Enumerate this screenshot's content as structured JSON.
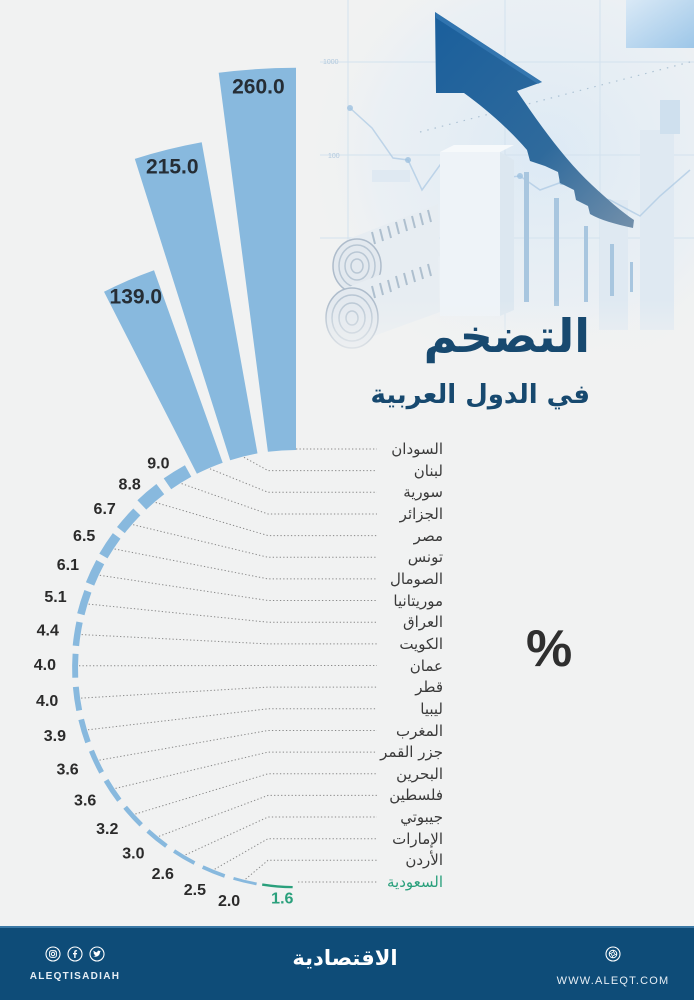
{
  "header": {
    "title": "التضخم",
    "subtitle": "في الدول العربية",
    "unit": "%"
  },
  "illustration": {
    "axis_labels": [
      "1000",
      "100"
    ],
    "icon": "rising-arrow-icon"
  },
  "chart_data": {
    "type": "bar",
    "variant": "radial",
    "title": "التضخم في الدول العربية",
    "xlabel": "",
    "ylabel": "%",
    "categories": [
      "السودان",
      "لبنان",
      "سورية",
      "الجزائر",
      "مصر",
      "تونس",
      "الصومال",
      "موريتانيا",
      "العراق",
      "الكويت",
      "عمان",
      "قطر",
      "ليبيا",
      "المغرب",
      "جزر القمر",
      "البحرين",
      "فلسطين",
      "جيبوتي",
      "الإمارات",
      "الأردن",
      "السعودية"
    ],
    "values": [
      260.0,
      215.0,
      139.0,
      9.0,
      8.8,
      6.7,
      6.5,
      6.1,
      5.1,
      4.4,
      4.0,
      4.0,
      3.9,
      3.6,
      3.6,
      3.2,
      3.0,
      2.6,
      2.5,
      2.0,
      1.6
    ],
    "value_labels": [
      "260.0",
      "215.0",
      "139.0",
      "9.0",
      "8.8",
      "6.7",
      "6.5",
      "6.1",
      "5.1",
      "4.4",
      "4.0",
      "4.0",
      "3.9",
      "3.6",
      "3.6",
      "3.2",
      "3.0",
      "2.6",
      "2.5",
      "2.0",
      "1.6"
    ],
    "highlight": "السعودية",
    "colors": {
      "bar": "#88b9de",
      "highlight": "#2aa07c"
    },
    "grid": false,
    "legend": null,
    "order": "descending"
  },
  "colors": {
    "background": "#f1f2f2",
    "title": "#17496f",
    "footer": "#0e4c78",
    "text": "#2b2b2b"
  },
  "footer": {
    "social_icons": [
      "instagram-icon",
      "facebook-icon",
      "twitter-icon"
    ],
    "social_handle": "ALEQTISADIAH",
    "logo": "الاقتصادية",
    "website_icon": "web-icon",
    "website": "WWW.ALEQT.COM"
  }
}
